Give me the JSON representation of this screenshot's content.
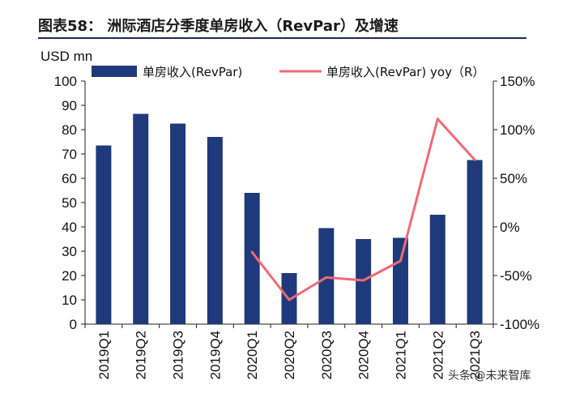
{
  "chart_data": {
    "type": "bar",
    "title": "图表58：  洲际酒店分季度单房收入（RevPar）及增速",
    "ylabel": "USD mn",
    "ylim": [
      0,
      100
    ],
    "y_ticks": [
      "0",
      "10",
      "20",
      "30",
      "40",
      "50",
      "60",
      "70",
      "80",
      "90",
      "100"
    ],
    "y2lim": [
      -100,
      150
    ],
    "y2_ticks": [
      "-100%",
      "-50%",
      "0%",
      "50%",
      "100%",
      "150%"
    ],
    "categories": [
      "2019Q1",
      "2019Q2",
      "2019Q3",
      "2019Q4",
      "2020Q1",
      "2020Q2",
      "2020Q3",
      "2020Q4",
      "2021Q1",
      "2021Q2",
      "2021Q3"
    ],
    "series": [
      {
        "name": "单房收入(RevPar)",
        "type": "bar",
        "axis": "left",
        "color": "#1f3a7a",
        "values": [
          73.5,
          86.5,
          82.5,
          77,
          54,
          21,
          39.5,
          35,
          35.5,
          45,
          67.5
        ]
      },
      {
        "name": "单房收入(RevPar) yoy（R）",
        "type": "line",
        "axis": "right",
        "color": "#f06a74",
        "values": [
          null,
          null,
          null,
          null,
          -26,
          -75,
          -52,
          -55,
          -35,
          111,
          69
        ]
      }
    ],
    "legend_position": "top",
    "grid": false,
    "watermark": "头条 @未来智库"
  }
}
